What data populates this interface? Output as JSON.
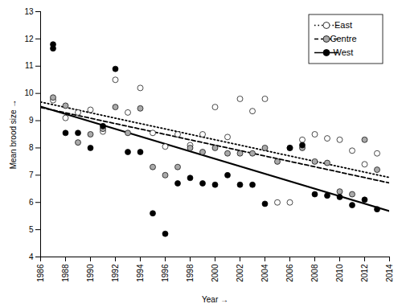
{
  "chart_data": {
    "type": "scatter",
    "xlabel": "Year",
    "ylabel": "Mean brood size",
    "xlim": [
      1986,
      2014
    ],
    "ylim": [
      4,
      13
    ],
    "xticks": [
      1986,
      1988,
      1990,
      1992,
      1994,
      1996,
      1998,
      2000,
      2002,
      2004,
      2006,
      2008,
      2010,
      2012,
      2014
    ],
    "yticks": [
      4,
      5,
      6,
      7,
      8,
      9,
      10,
      11,
      12,
      13
    ],
    "grid": false,
    "legend": "upper right",
    "series": [
      {
        "name": "East",
        "color": "white",
        "marker": "circle",
        "line_style": "dotted",
        "x": [
          1987,
          1988,
          1989,
          1990,
          1991,
          1992,
          1993,
          1994,
          1995,
          1996,
          1997,
          1998,
          1999,
          2000,
          2001,
          2002,
          2003,
          2004,
          2005,
          2006,
          2007,
          2008,
          2009,
          2010,
          2011,
          2012,
          2013
        ],
        "values": [
          9.75,
          9.1,
          9.3,
          9.4,
          8.6,
          10.5,
          9.3,
          10.2,
          8.55,
          8.05,
          8.5,
          8.1,
          8.5,
          9.5,
          8.4,
          9.8,
          9.35,
          9.8,
          6.0,
          6.0,
          8.3,
          8.5,
          8.35,
          8.3,
          7.9,
          7.4,
          7.8
        ],
        "fit_x": [
          1986,
          2014
        ],
        "fit_values": [
          9.686,
          6.914
        ]
      },
      {
        "name": "Centre",
        "color": "#aaaaaa",
        "marker": "circle",
        "line_style": "dashed",
        "x": [
          1987,
          1988,
          1989,
          1990,
          1991,
          1992,
          1993,
          1994,
          1995,
          1996,
          1997,
          1998,
          1999,
          2000,
          2001,
          2002,
          2003,
          2004,
          2005,
          2006,
          2007,
          2008,
          2009,
          2010,
          2011,
          2012,
          2013
        ],
        "values": [
          9.85,
          9.55,
          8.2,
          8.5,
          8.7,
          9.5,
          8.55,
          9.45,
          7.3,
          7.0,
          7.3,
          8.0,
          7.85,
          8.0,
          7.8,
          7.8,
          7.8,
          8.0,
          7.5,
          8.0,
          8.0,
          7.5,
          7.45,
          6.4,
          6.3,
          8.3,
          7.2
        ],
        "fit_x": [
          1986,
          2014
        ],
        "fit_values": [
          9.486,
          6.714
        ]
      },
      {
        "name": "West",
        "color": "black",
        "marker": "circle",
        "line_style": "solid",
        "x": [
          1987,
          1987,
          1988,
          1989,
          1990,
          1991,
          1992,
          1993,
          1994,
          1995,
          1996,
          1997,
          1998,
          1999,
          2000,
          2001,
          2002,
          2003,
          2004,
          2006,
          2007,
          2008,
          2009,
          2010,
          2011,
          2012,
          2013
        ],
        "values": [
          11.8,
          11.65,
          8.55,
          8.55,
          8.0,
          8.8,
          10.9,
          7.85,
          7.85,
          5.6,
          4.85,
          6.7,
          6.9,
          6.7,
          6.65,
          7.0,
          6.65,
          6.65,
          5.95,
          8.0,
          8.1,
          6.3,
          6.25,
          6.2,
          5.9,
          6.1,
          5.75
        ],
        "fit_x": [
          1986,
          2014
        ],
        "fit_values": [
          9.518,
          5.682
        ]
      }
    ]
  }
}
